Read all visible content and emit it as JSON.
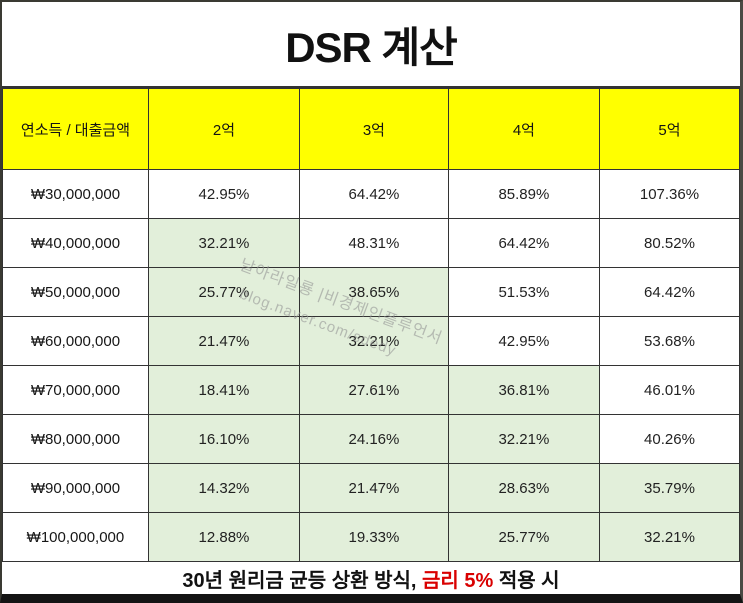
{
  "title": "DSR 계산",
  "table": {
    "headers": [
      "연소득 / 대출금액",
      "2억",
      "3억",
      "4억",
      "5억"
    ],
    "rows": [
      {
        "income": "₩30,000,000",
        "values": [
          "42.95%",
          "64.42%",
          "85.89%",
          "107.36%"
        ],
        "green": [
          false,
          false,
          false,
          false
        ]
      },
      {
        "income": "₩40,000,000",
        "values": [
          "32.21%",
          "48.31%",
          "64.42%",
          "80.52%"
        ],
        "green": [
          true,
          false,
          false,
          false
        ]
      },
      {
        "income": "₩50,000,000",
        "values": [
          "25.77%",
          "38.65%",
          "51.53%",
          "64.42%"
        ],
        "green": [
          true,
          true,
          false,
          false
        ]
      },
      {
        "income": "₩60,000,000",
        "values": [
          "21.47%",
          "32.21%",
          "42.95%",
          "53.68%"
        ],
        "green": [
          true,
          true,
          false,
          false
        ]
      },
      {
        "income": "₩70,000,000",
        "values": [
          "18.41%",
          "27.61%",
          "36.81%",
          "46.01%"
        ],
        "green": [
          true,
          true,
          true,
          false
        ]
      },
      {
        "income": "₩80,000,000",
        "values": [
          "16.10%",
          "24.16%",
          "32.21%",
          "40.26%"
        ],
        "green": [
          true,
          true,
          true,
          false
        ]
      },
      {
        "income": "₩90,000,000",
        "values": [
          "14.32%",
          "21.47%",
          "28.63%",
          "35.79%"
        ],
        "green": [
          true,
          true,
          true,
          true
        ]
      },
      {
        "income": "₩100,000,000",
        "values": [
          "12.88%",
          "19.33%",
          "25.77%",
          "32.21%"
        ],
        "green": [
          true,
          true,
          true,
          true
        ]
      }
    ]
  },
  "footer": {
    "prefix": "30년 원리금 균등 상환 방식, ",
    "highlight": "금리 5%",
    "suffix": " 적용 시"
  },
  "watermark": {
    "line1": "날아라일룡 |비경제인플루언서",
    "line2": "blog.naver.com/sdedy"
  },
  "colors": {
    "header_bg": "#ffff00",
    "highlight_bg": "#e2efda",
    "footer_accent": "#d90000",
    "border": "#333333"
  },
  "chart_data": {
    "type": "table",
    "title": "DSR 계산",
    "columns": [
      "연소득 / 대출금액",
      "2억",
      "3억",
      "4억",
      "5억"
    ],
    "row_labels": [
      "₩30,000,000",
      "₩40,000,000",
      "₩50,000,000",
      "₩60,000,000",
      "₩70,000,000",
      "₩80,000,000",
      "₩90,000,000",
      "₩100,000,000"
    ],
    "values_percent": [
      [
        42.95,
        64.42,
        85.89,
        107.36
      ],
      [
        32.21,
        48.31,
        64.42,
        80.52
      ],
      [
        25.77,
        38.65,
        51.53,
        64.42
      ],
      [
        21.47,
        32.21,
        42.95,
        53.68
      ],
      [
        18.41,
        27.61,
        36.81,
        46.01
      ],
      [
        16.1,
        24.16,
        32.21,
        40.26
      ],
      [
        14.32,
        21.47,
        28.63,
        35.79
      ],
      [
        12.88,
        19.33,
        25.77,
        32.21
      ]
    ],
    "unit": "%",
    "note": "30년 원리금 균등 상환 방식, 금리 5% 적용 시",
    "highlight": "cells under 40% shaded light green"
  }
}
